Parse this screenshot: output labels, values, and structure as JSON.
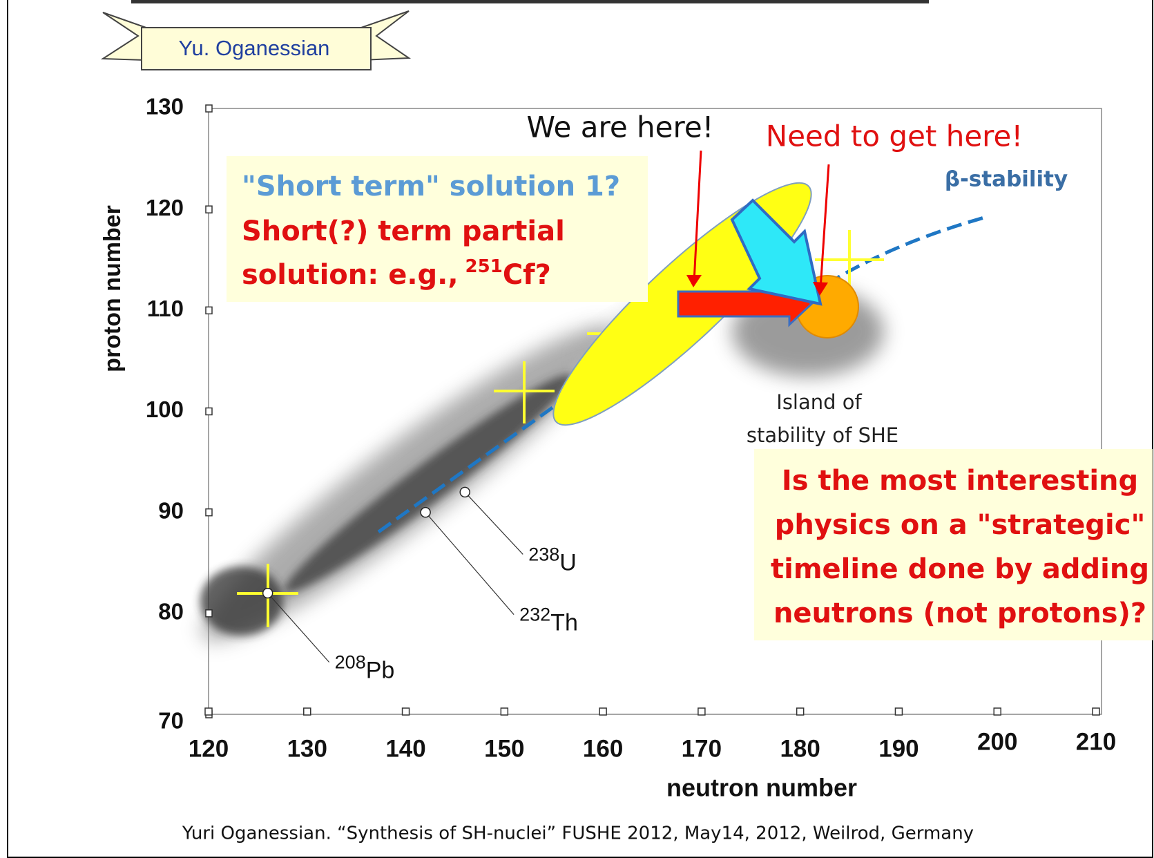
{
  "chart_data": {
    "type": "scatter",
    "badge": "Yu. Oganessian",
    "x_label": "neutron number",
    "y_label": "proton number",
    "xlim": [
      120,
      210
    ],
    "ylim": [
      70,
      130
    ],
    "xticks": [
      120,
      130,
      140,
      150,
      160,
      170,
      180,
      190,
      200,
      210
    ],
    "yticks": [
      70,
      80,
      90,
      100,
      110,
      120,
      130
    ],
    "x": [
      126,
      142,
      146
    ],
    "values": [
      82,
      90,
      92
    ],
    "point_labels": [
      {
        "mass": "208",
        "symbol": "Pb"
      },
      {
        "mass": "232",
        "symbol": "Th"
      },
      {
        "mass": "238",
        "symbol": "U"
      }
    ],
    "annotations": {
      "we_are_here": "We are here!",
      "need_to_get_here": "Need to get here!",
      "beta_stability": "β-stability",
      "island": [
        "Island of",
        "stability of SHE"
      ],
      "left_box": {
        "line1": "\"Short term\" solution 1?",
        "line2": "Short(?) term partial",
        "line3": "solution: e.g.,",
        "line3_sup": "251",
        "line3_end": "Cf?"
      },
      "right_box": [
        "Is the most interesting",
        "physics on a \"strategic\"",
        "timeline done by adding",
        "neutrons (not protons)?"
      ]
    },
    "footer": "Yuri Oganessian.  “Synthesis of SH-nuclei”  FUSHE 2012, May14, 2012, Weilrod, Germany"
  }
}
